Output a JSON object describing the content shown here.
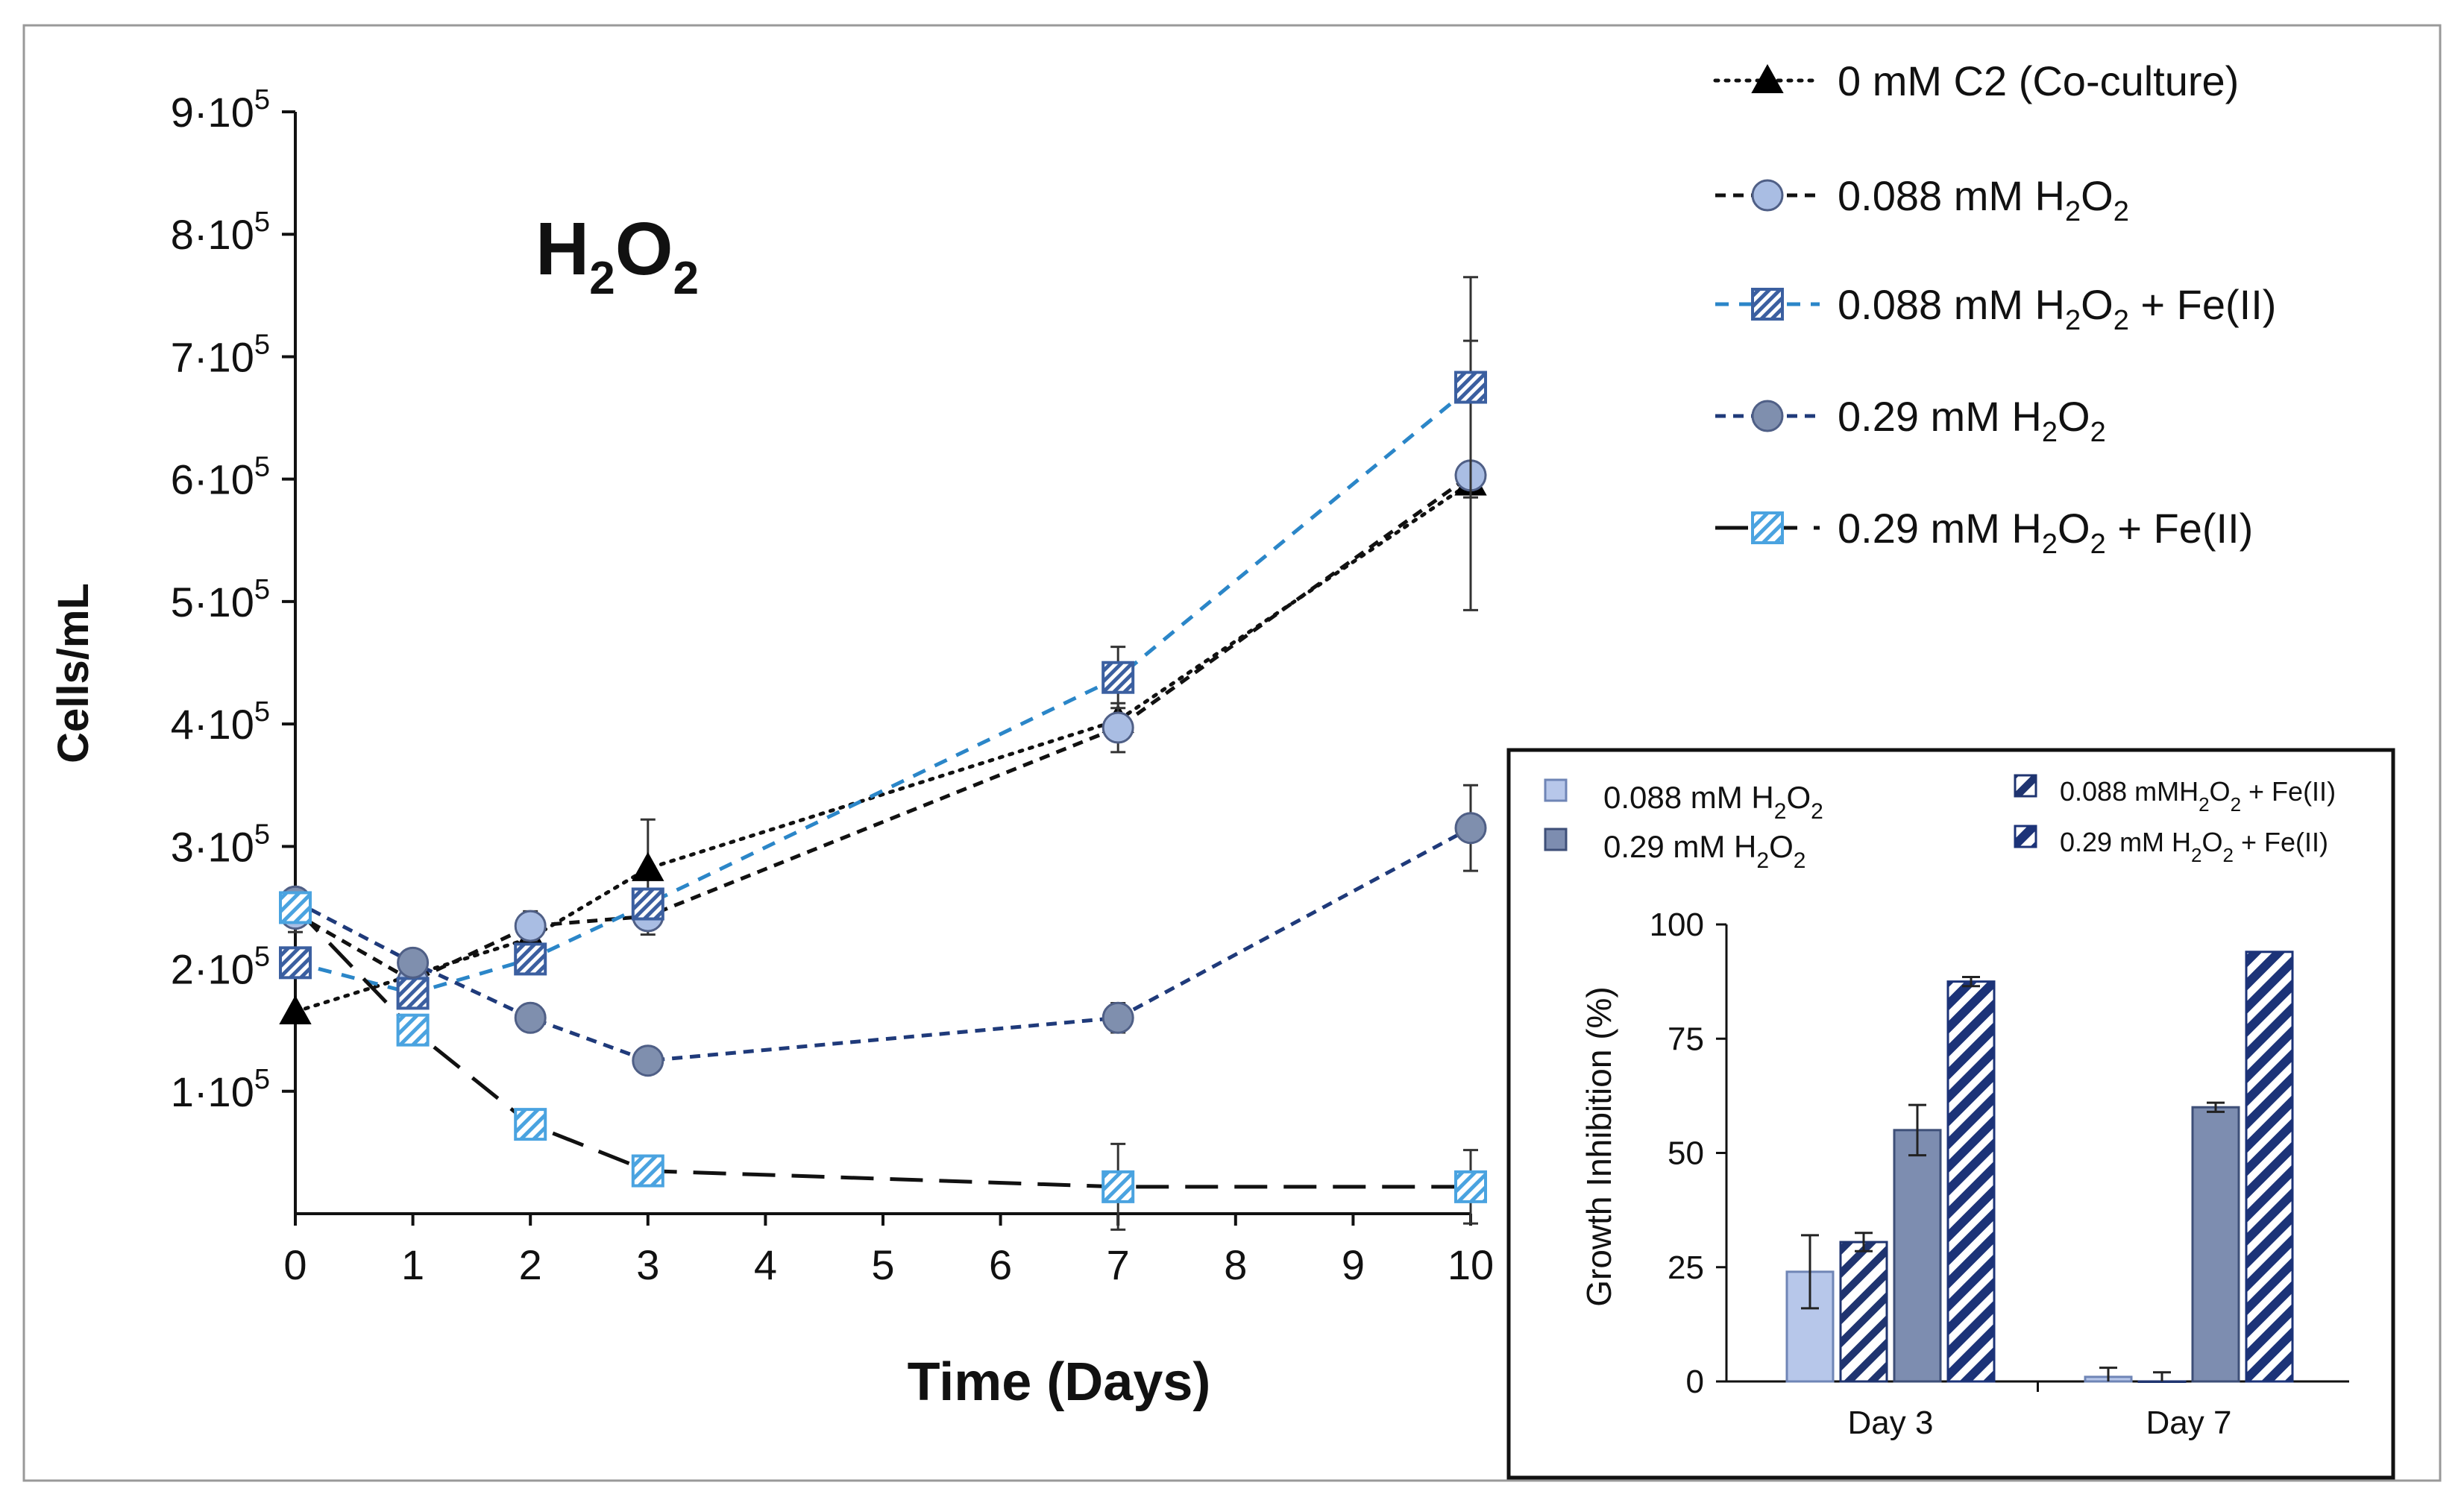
{
  "chart_data": [
    {
      "type": "line",
      "title": "H2O2",
      "title_parts": {
        "base1": "H",
        "sub1": "2",
        "base2": "O",
        "sub2": "2"
      },
      "xlabel": "Time (Days)",
      "ylabel": "Cells/mL",
      "xlim": [
        0,
        10
      ],
      "ylim": [
        0,
        900000
      ],
      "x_ticks": [
        "0",
        "1",
        "2",
        "3",
        "4",
        "5",
        "6",
        "7",
        "8",
        "9",
        "10"
      ],
      "y_ticks": [
        {
          "value": 100000,
          "mant": "1·10",
          "exp": "5"
        },
        {
          "value": 200000,
          "mant": "2·10",
          "exp": "5"
        },
        {
          "value": 300000,
          "mant": "3·10",
          "exp": "5"
        },
        {
          "value": 400000,
          "mant": "4·10",
          "exp": "5"
        },
        {
          "value": 500000,
          "mant": "5·10",
          "exp": "5"
        },
        {
          "value": 600000,
          "mant": "6·10",
          "exp": "5"
        },
        {
          "value": 700000,
          "mant": "7·10",
          "exp": "5"
        },
        {
          "value": 800000,
          "mant": "8·10",
          "exp": "5"
        },
        {
          "value": 900000,
          "mant": "9·10",
          "exp": "5"
        }
      ],
      "legend_position": "top-right",
      "series": [
        {
          "name": "0 mM C2 (Co-culture)",
          "label_parts": [
            "0 mM C2 (Co-culture)"
          ],
          "marker": "triangle",
          "line": "dotted",
          "color": "#111111",
          "fill": "#000000",
          "x": [
            0,
            1,
            2,
            3,
            7,
            10
          ],
          "y": [
            165000,
            195000,
            225000,
            282000,
            403000,
            597000
          ],
          "err": [
            0,
            0,
            0,
            40000,
            0,
            0
          ]
        },
        {
          "name": "0.088 mM H2O2",
          "label_parts": [
            "0.088 mM H",
            "2",
            "O",
            "2",
            ""
          ],
          "marker": "circle",
          "line": "short-dashed",
          "color": "#111111",
          "fill": "#a9bde3",
          "x": [
            0,
            1,
            2,
            3,
            7,
            10
          ],
          "y": [
            245000,
            190000,
            235000,
            243000,
            397000,
            603000
          ],
          "err": [
            15000,
            0,
            12000,
            15000,
            20000,
            110000
          ]
        },
        {
          "name": "0.088 mM H2O2 + Fe(II)",
          "label_parts": [
            "0.088 mM H",
            "2",
            "O",
            "2",
            " + Fe(II)"
          ],
          "marker": "square-hatch-dense",
          "line": "dashed",
          "color": "#2b86c8",
          "fill": "#3b5fa0",
          "x": [
            0,
            1,
            2,
            3,
            7,
            10
          ],
          "y": [
            205000,
            180000,
            208000,
            253000,
            438000,
            675000
          ],
          "err": [
            0,
            0,
            0,
            10000,
            25000,
            90000
          ]
        },
        {
          "name": "0.29 mM H2O2",
          "label_parts": [
            "0.29 mM H",
            "2",
            "O",
            "2",
            ""
          ],
          "marker": "circle",
          "line": "short-dashed",
          "color": "#1f3a7a",
          "fill": "#7f8fae",
          "x": [
            0,
            1,
            2,
            3,
            7,
            10
          ],
          "y": [
            255000,
            205000,
            160000,
            125000,
            160000,
            315000
          ],
          "err": [
            0,
            0,
            0,
            0,
            12000,
            35000
          ]
        },
        {
          "name": "0.29 mM H2O2 + Fe(II)",
          "label_parts": [
            "0.29 mM H",
            "2",
            "O",
            "2",
            " + Fe(II)"
          ],
          "marker": "square-hatch-light",
          "line": "long-dashed",
          "color": "#111111",
          "fill": "#4aa3e0",
          "x": [
            0,
            1,
            2,
            3,
            7,
            10
          ],
          "y": [
            250000,
            150000,
            73000,
            35000,
            22000,
            22000
          ],
          "err": [
            0,
            0,
            0,
            0,
            35000,
            30000
          ]
        }
      ]
    },
    {
      "type": "bar",
      "xlabel": "",
      "ylabel": "Growth Inhibition (%)",
      "ylim": [
        0,
        100
      ],
      "y_ticks": [
        "0",
        "25",
        "50",
        "75",
        "100"
      ],
      "categories": [
        "Day 3",
        "Day 7"
      ],
      "legend_position": "top",
      "series": [
        {
          "name": "0.088 mM H2O2",
          "label_parts": [
            "0.088 mM H",
            "2",
            "O",
            "2",
            ""
          ],
          "style": "solid-light",
          "color": "#b7c7ea",
          "values": [
            24,
            1
          ],
          "err": [
            8,
            2
          ]
        },
        {
          "name": "0.088 mMH2O2 + Fe(II)",
          "label_parts": [
            "0.088 mMH",
            "2",
            "O",
            "2",
            " + Fe(II)"
          ],
          "style": "hatch-light",
          "color": "#1f3470",
          "values": [
            30.5,
            0
          ],
          "err": [
            2,
            2
          ]
        },
        {
          "name": "0.29 mM H2O2",
          "label_parts": [
            "0.29 mM H",
            "2",
            "O",
            "2",
            ""
          ],
          "style": "solid-dark",
          "color": "#7d8db0",
          "values": [
            55,
            60
          ],
          "err": [
            5.5,
            1
          ]
        },
        {
          "name": "0.29 mM H2O2 + Fe(II)",
          "label_parts": [
            "0.29 mM H",
            "2",
            "O",
            "2",
            " + Fe(II)"
          ],
          "style": "hatch-dark",
          "color": "#1c3378",
          "values": [
            87.5,
            94
          ],
          "err": [
            1,
            0
          ]
        }
      ]
    }
  ]
}
